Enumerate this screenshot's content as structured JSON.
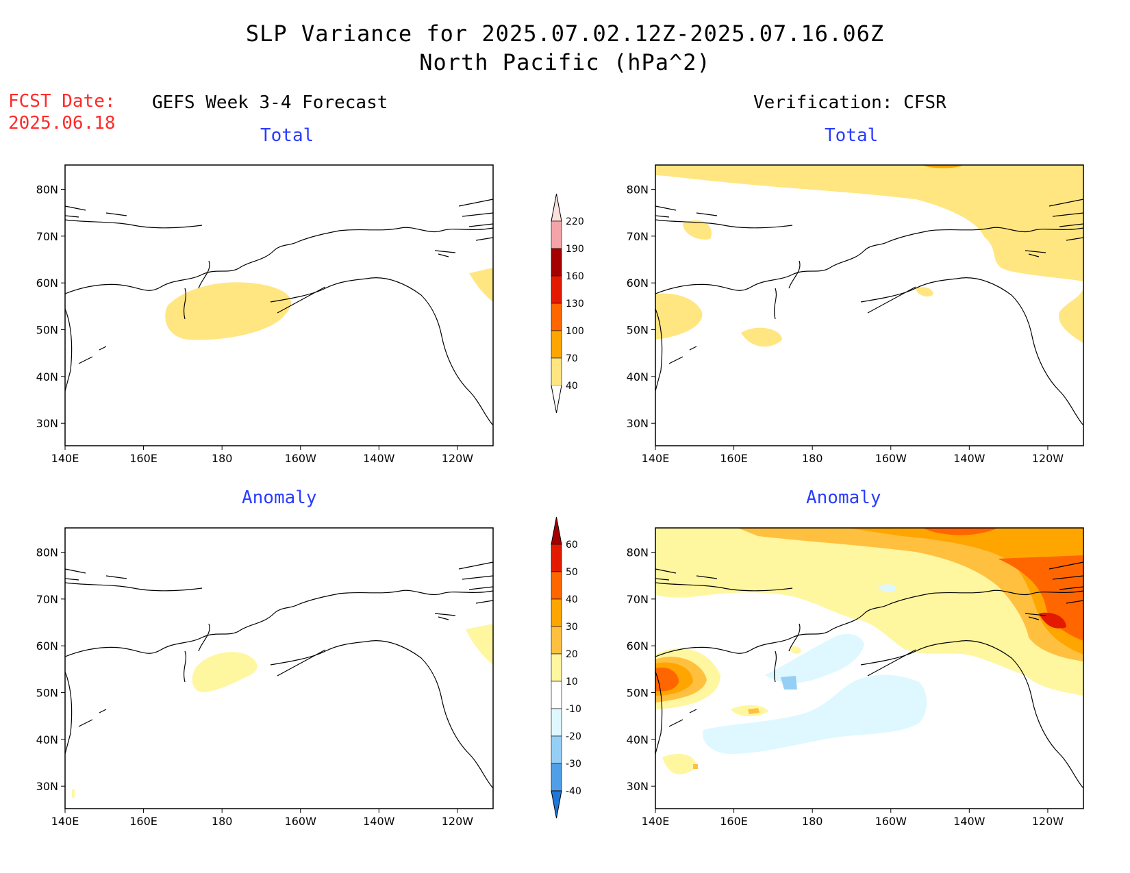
{
  "header": {
    "title_line1": "SLP Variance for 2025.07.02.12Z-2025.07.16.06Z",
    "title_line2": "North Pacific (hPa^2)",
    "fcst_label": "FCST Date:",
    "fcst_date": "2025.06.18"
  },
  "columns": {
    "left_title": "GEFS Week 3-4 Forecast",
    "right_title": "Verification: CFSR"
  },
  "panels": {
    "total_label": "Total",
    "anomaly_label": "Anomaly"
  },
  "axes": {
    "lon_ticks": [
      "140E",
      "160E",
      "180",
      "160W",
      "140W",
      "120W"
    ],
    "lat_ticks": [
      "80N",
      "70N",
      "60N",
      "50N",
      "40N",
      "30N"
    ]
  },
  "colorbar_total": {
    "labels": [
      "220",
      "190",
      "160",
      "130",
      "100",
      "70",
      "40"
    ],
    "colors": [
      "#fde0dd",
      "#f4a3a8",
      "#a50000",
      "#e31a00",
      "#ff6600",
      "#ffa500",
      "#ffe680"
    ]
  },
  "colorbar_anomaly": {
    "labels": [
      "60",
      "50",
      "40",
      "30",
      "20",
      "10",
      "-10",
      "-20",
      "-30",
      "-40"
    ],
    "colors": [
      "#a50000",
      "#e31a00",
      "#ff6600",
      "#ffa500",
      "#ffc040",
      "#fff6a0",
      "#ffffff",
      "#dff8ff",
      "#96cff5",
      "#4f9ee8",
      "#1f78d8"
    ]
  },
  "colors": {
    "yellow": "#ffe680",
    "light_yellow": "#fff6a0",
    "orange": "#ffa500",
    "dark_orange": "#ff6600",
    "red": "#e31a00",
    "light_blue": "#dff8ff",
    "blue": "#96cff5"
  }
}
